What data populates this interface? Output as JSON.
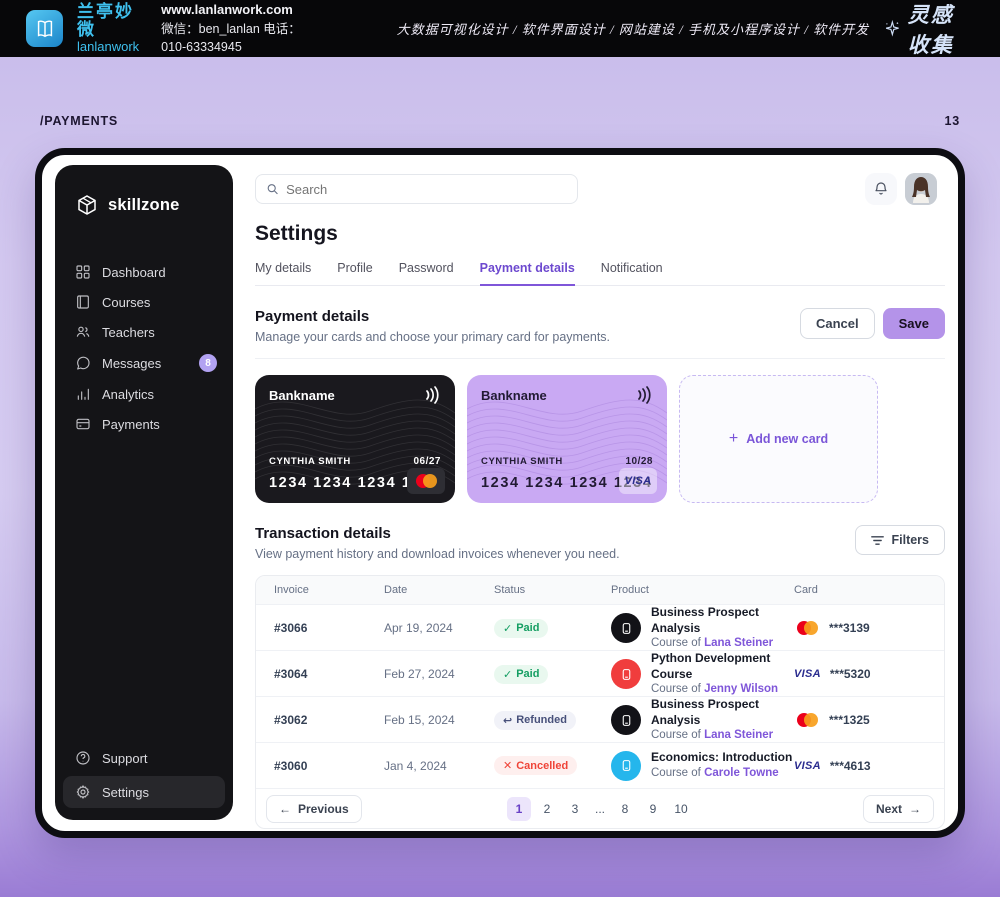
{
  "banner": {
    "brand_cn": "兰亭妙微",
    "brand_en": "lanlanwork",
    "website": "www.lanlanwork.com",
    "contact": "微信：ben_lanlan   电话：010-63334945",
    "services": "大数据可视化设计 / 软件界面设计 / 网站建设 / 手机及小程序设计 / 软件开发",
    "collect_label": "灵感收集",
    "logo_icon": "book-icon",
    "collect_icon": "sparkle-star-icon",
    "brand_color": "#3fc0ee"
  },
  "page": {
    "breadcrumb": "/PAYMENTS",
    "page_number": "13"
  },
  "sidebar": {
    "brand": "skillzone",
    "brand_icon": "cube-icon",
    "items": [
      {
        "label": "Dashboard",
        "icon": "grid-icon"
      },
      {
        "label": "Courses",
        "icon": "book-icon"
      },
      {
        "label": "Teachers",
        "icon": "users-icon"
      },
      {
        "label": "Messages",
        "icon": "chat-icon",
        "badge": "8"
      },
      {
        "label": "Analytics",
        "icon": "bars-icon"
      },
      {
        "label": "Payments",
        "icon": "credit-card-icon"
      }
    ],
    "footer_items": [
      {
        "label": "Support",
        "icon": "help-icon",
        "active": false
      },
      {
        "label": "Settings",
        "icon": "gear-icon",
        "active": true
      }
    ],
    "badge_color": "#b2a2f2"
  },
  "topbar": {
    "search_placeholder": "Search",
    "search_icon": "search-icon",
    "bell_icon": "bell-icon",
    "avatar": "user-photo"
  },
  "settings": {
    "title": "Settings",
    "tabs": [
      "My details",
      "Profile",
      "Password",
      "Payment details",
      "Notification"
    ],
    "active_tab": "Payment details",
    "accent_color": "#7f56d9"
  },
  "payment_section": {
    "title": "Payment details",
    "subtitle": "Manage your cards and choose your primary card for payments.",
    "cancel_label": "Cancel",
    "save_label": "Save",
    "add_card_label": "Add new card",
    "cards": [
      {
        "bank": "Bankname",
        "holder": "CYNTHIA SMITH",
        "expiry": "06/27",
        "number": "1234 1234 1234 1234",
        "network": "mastercard",
        "theme": "dark",
        "contactless_icon": "contactless-icon"
      },
      {
        "bank": "Bankname",
        "holder": "CYNTHIA SMITH",
        "expiry": "10/28",
        "number": "1234 1234 1234 1234",
        "network": "visa",
        "theme": "purple",
        "contactless_icon": "contactless-icon"
      }
    ]
  },
  "transactions": {
    "title": "Transaction details",
    "subtitle": "View payment history and download invoices whenever you need.",
    "filters_label": "Filters",
    "filters_icon": "filter-lines-icon",
    "columns": [
      "Invoice",
      "Date",
      "Status",
      "Product",
      "Card"
    ],
    "rows": [
      {
        "invoice": "#3066",
        "date": "Apr 19, 2024",
        "status": "Paid",
        "status_icon": "check-icon",
        "product": "Business Prospect Analysis",
        "course_prefix": "Course of",
        "teacher": "Lana Steiner",
        "product_icon": "course-book-icon",
        "product_icon_color": "#121217",
        "network": "mastercard",
        "card": "***3139"
      },
      {
        "invoice": "#3064",
        "date": "Feb 27, 2024",
        "status": "Paid",
        "status_icon": "check-icon",
        "product": "Python Development Course",
        "course_prefix": "Course of",
        "teacher": "Jenny Wilson",
        "product_icon": "course-book-icon",
        "product_icon_color": "#f03d3d",
        "network": "visa",
        "card": "***5320"
      },
      {
        "invoice": "#3062",
        "date": "Feb 15, 2024",
        "status": "Refunded",
        "status_icon": "return-arrow-icon",
        "product": "Business Prospect Analysis",
        "course_prefix": "Course of",
        "teacher": "Lana Steiner",
        "product_icon": "course-book-icon",
        "product_icon_color": "#121217",
        "network": "mastercard",
        "card": "***1325"
      },
      {
        "invoice": "#3060",
        "date": "Jan 4, 2024",
        "status": "Cancelled",
        "status_icon": "x-icon",
        "product": "Economics: Introduction",
        "course_prefix": "Course of",
        "teacher": "Carole Towne",
        "product_icon": "course-book-icon",
        "product_icon_color": "#25b6ec",
        "network": "visa",
        "card": "***4613"
      }
    ],
    "status_colors": {
      "Paid": "#149e62",
      "Refunded": "#47507a",
      "Cancelled": "#ef4438"
    },
    "pagination": {
      "previous_label": "Previous",
      "next_label": "Next",
      "prev_icon": "arrow-left-icon",
      "next_icon": "arrow-right-icon",
      "pages": [
        "1",
        "2",
        "3",
        "…",
        "8",
        "9",
        "10"
      ],
      "current": "1"
    }
  }
}
